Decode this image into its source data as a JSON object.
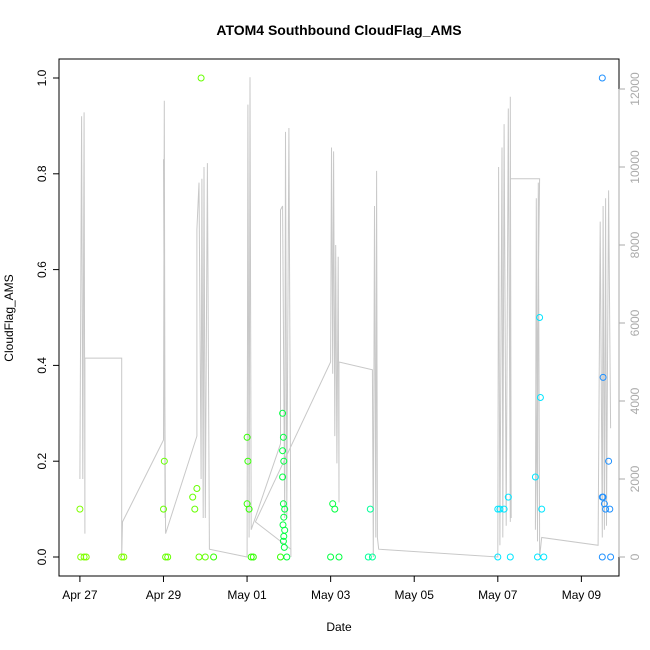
{
  "chart_data": {
    "type": "scatter",
    "title": "ATOM4 Southbound CloudFlag_AMS",
    "xlabel": "Date",
    "ylabel": "CloudFlag_AMS",
    "x_ticks": [
      "Apr 27",
      "Apr 29",
      "May 01",
      "May 03",
      "May 05",
      "May 07",
      "May 09"
    ],
    "x_tick_days": [
      0,
      2,
      4,
      6,
      8,
      10,
      12
    ],
    "xlim_days": [
      -0.5,
      12.9
    ],
    "ylim": [
      0,
      1.0
    ],
    "y_ticks": [
      "0.0",
      "0.2",
      "0.4",
      "0.6",
      "0.8",
      "1.0"
    ],
    "y_tick_values": [
      0,
      0.2,
      0.4,
      0.6,
      0.8,
      1.0
    ],
    "y2_label": "",
    "y2lim": [
      0,
      12000
    ],
    "y2_ticks": [
      "0",
      "2000",
      "4000",
      "6000",
      "8000",
      "10000",
      "12000"
    ],
    "y2_tick_values": [
      0,
      2000,
      4000,
      6000,
      8000,
      10000,
      12000
    ],
    "grid": false,
    "legend": "none",
    "point_colors": [
      "#7fff00",
      "#66ff00",
      "#33ff00",
      "#00ff40",
      "#00ff99",
      "#00ffff",
      "#00e5ff",
      "#1e90ff"
    ],
    "line_color": "#c8c8c8",
    "series": [
      {
        "values": [
          {
            "day": 0.0,
            "y": 0.1
          },
          {
            "day": 0.02,
            "y": 0.0
          },
          {
            "day": 0.1,
            "y": 0.0
          },
          {
            "day": 0.15,
            "y": 0.0
          },
          {
            "day": 1.0,
            "y": 0.0
          },
          {
            "day": 1.05,
            "y": 0.0
          },
          {
            "day": 2.0,
            "y": 0.1
          },
          {
            "day": 2.02,
            "y": 0.2
          },
          {
            "day": 2.05,
            "y": 0.0
          },
          {
            "day": 2.1,
            "y": 0.0
          },
          {
            "day": 2.7,
            "y": 0.125
          },
          {
            "day": 2.75,
            "y": 0.1
          },
          {
            "day": 2.8,
            "y": 0.143
          },
          {
            "day": 2.85,
            "y": 0.0
          },
          {
            "day": 2.9,
            "y": 1.0
          },
          {
            "day": 3.0,
            "y": 0.0
          },
          {
            "day": 3.2,
            "y": 0.0
          },
          {
            "day": 4.0,
            "y": 0.25
          },
          {
            "day": 4.02,
            "y": 0.2
          },
          {
            "day": 4.0,
            "y": 0.111
          },
          {
            "day": 4.05,
            "y": 0.1
          },
          {
            "day": 4.1,
            "y": 0.0
          },
          {
            "day": 4.15,
            "y": 0.0
          },
          {
            "day": 4.85,
            "y": 0.3
          },
          {
            "day": 4.87,
            "y": 0.25
          },
          {
            "day": 4.85,
            "y": 0.222
          },
          {
            "day": 4.88,
            "y": 0.2
          },
          {
            "day": 4.85,
            "y": 0.167
          },
          {
            "day": 4.87,
            "y": 0.111
          },
          {
            "day": 4.9,
            "y": 0.1
          },
          {
            "day": 4.88,
            "y": 0.083
          },
          {
            "day": 4.86,
            "y": 0.067
          },
          {
            "day": 4.9,
            "y": 0.056
          },
          {
            "day": 4.88,
            "y": 0.043
          },
          {
            "day": 4.87,
            "y": 0.033
          },
          {
            "day": 4.89,
            "y": 0.02
          },
          {
            "day": 4.8,
            "y": 0.0
          },
          {
            "day": 4.95,
            "y": 0.0
          },
          {
            "day": 6.05,
            "y": 0.111
          },
          {
            "day": 6.1,
            "y": 0.1
          },
          {
            "day": 6.0,
            "y": 0.0
          },
          {
            "day": 6.2,
            "y": 0.0
          },
          {
            "day": 6.95,
            "y": 0.1
          },
          {
            "day": 6.9,
            "y": 0.0
          },
          {
            "day": 7.0,
            "y": 0.0
          },
          {
            "day": 10.0,
            "y": 0.1
          },
          {
            "day": 10.05,
            "y": 0.1
          },
          {
            "day": 10.15,
            "y": 0.1
          },
          {
            "day": 10.25,
            "y": 0.125
          },
          {
            "day": 10.0,
            "y": 0.0
          },
          {
            "day": 10.3,
            "y": 0.0
          },
          {
            "day": 10.9,
            "y": 0.167
          },
          {
            "day": 11.0,
            "y": 0.5
          },
          {
            "day": 11.02,
            "y": 0.333
          },
          {
            "day": 11.05,
            "y": 0.1
          },
          {
            "day": 10.95,
            "y": 0.0
          },
          {
            "day": 11.1,
            "y": 0.0
          },
          {
            "day": 12.5,
            "y": 1.0
          },
          {
            "day": 12.52,
            "y": 0.375
          },
          {
            "day": 12.5,
            "y": 0.125
          },
          {
            "day": 12.52,
            "y": 0.125
          },
          {
            "day": 12.55,
            "y": 0.111
          },
          {
            "day": 12.58,
            "y": 0.1
          },
          {
            "day": 12.68,
            "y": 0.1
          },
          {
            "day": 12.65,
            "y": 0.2
          },
          {
            "day": 12.5,
            "y": 0.0
          },
          {
            "day": 12.7,
            "y": 0.0
          }
        ]
      },
      {
        "axis": "right",
        "values": [
          {
            "day": 0.0,
            "y2": 2000
          },
          {
            "day": 0.04,
            "y2": 11300
          },
          {
            "day": 0.07,
            "y2": 2000
          },
          {
            "day": 0.1,
            "y2": 11400
          },
          {
            "day": 0.12,
            "y2": 600
          },
          {
            "day": 0.12,
            "y2": 5100
          },
          {
            "day": 1.0,
            "y2": 5100
          },
          {
            "day": 1.0,
            "y2": 0
          },
          {
            "day": 1.02,
            "y2": 900
          },
          {
            "day": 2.0,
            "y2": 3000
          },
          {
            "day": 2.02,
            "y2": 11700
          },
          {
            "day": 2.04,
            "y2": 1000
          },
          {
            "day": 2.0,
            "y2": 10200
          },
          {
            "day": 2.05,
            "y2": 600
          },
          {
            "day": 2.8,
            "y2": 3100
          },
          {
            "day": 2.8,
            "y2": 8400
          },
          {
            "day": 2.85,
            "y2": 9600
          },
          {
            "day": 2.9,
            "y2": 2000
          },
          {
            "day": 2.92,
            "y2": 9700
          },
          {
            "day": 2.95,
            "y2": 1000
          },
          {
            "day": 2.97,
            "y2": 10000
          },
          {
            "day": 3.0,
            "y2": 1000
          },
          {
            "day": 3.05,
            "y2": 10100
          },
          {
            "day": 3.1,
            "y2": 200
          },
          {
            "day": 4.0,
            "y2": 0
          },
          {
            "day": 4.02,
            "y2": 11600
          },
          {
            "day": 4.05,
            "y2": 500
          },
          {
            "day": 4.07,
            "y2": 12300
          },
          {
            "day": 4.1,
            "y2": 700
          },
          {
            "day": 4.8,
            "y2": 2900
          },
          {
            "day": 4.8,
            "y2": 8900
          },
          {
            "day": 4.85,
            "y2": 9000
          },
          {
            "day": 4.9,
            "y2": 1000
          },
          {
            "day": 4.92,
            "y2": 10900
          },
          {
            "day": 4.95,
            "y2": 1000
          },
          {
            "day": 5.0,
            "y2": 11000
          },
          {
            "day": 5.05,
            "y2": 0
          },
          {
            "day": 5.05,
            "y2": 200
          },
          {
            "day": 4.2,
            "y2": 900
          },
          {
            "day": 6.0,
            "y2": 5000
          },
          {
            "day": 6.02,
            "y2": 10500
          },
          {
            "day": 6.05,
            "y2": 4700
          },
          {
            "day": 6.07,
            "y2": 10400
          },
          {
            "day": 6.1,
            "y2": 3100
          },
          {
            "day": 6.12,
            "y2": 8000
          },
          {
            "day": 6.15,
            "y2": 2400
          },
          {
            "day": 6.18,
            "y2": 7700
          },
          {
            "day": 6.2,
            "y2": 1400
          },
          {
            "day": 6.2,
            "y2": 5000
          },
          {
            "day": 7.0,
            "y2": 4800
          },
          {
            "day": 7.02,
            "y2": 0
          },
          {
            "day": 7.05,
            "y2": 9000
          },
          {
            "day": 7.08,
            "y2": 500
          },
          {
            "day": 7.1,
            "y2": 9900
          },
          {
            "day": 7.12,
            "y2": 500
          },
          {
            "day": 7.15,
            "y2": 200
          },
          {
            "day": 10.0,
            "y2": 0
          },
          {
            "day": 10.02,
            "y2": 10000
          },
          {
            "day": 10.05,
            "y2": 300
          },
          {
            "day": 10.1,
            "y2": 10500
          },
          {
            "day": 10.12,
            "y2": 500
          },
          {
            "day": 10.15,
            "y2": 11100
          },
          {
            "day": 10.2,
            "y2": 800
          },
          {
            "day": 10.25,
            "y2": 11500
          },
          {
            "day": 10.3,
            "y2": 900
          },
          {
            "day": 10.3,
            "y2": 11800
          },
          {
            "day": 10.32,
            "y2": 1000
          },
          {
            "day": 10.3,
            "y2": 9700
          },
          {
            "day": 11.0,
            "y2": 9700
          },
          {
            "day": 10.9,
            "y2": 700
          },
          {
            "day": 10.92,
            "y2": 9200
          },
          {
            "day": 10.95,
            "y2": 400
          },
          {
            "day": 10.97,
            "y2": 9600
          },
          {
            "day": 11.0,
            "y2": 500
          },
          {
            "day": 11.0,
            "y2": 0
          },
          {
            "day": 11.05,
            "y2": 500
          },
          {
            "day": 12.4,
            "y2": 300
          },
          {
            "day": 12.45,
            "y2": 8600
          },
          {
            "day": 12.5,
            "y2": 500
          },
          {
            "day": 12.52,
            "y2": 9000
          },
          {
            "day": 12.55,
            "y2": 700
          },
          {
            "day": 12.58,
            "y2": 9200
          },
          {
            "day": 12.6,
            "y2": 800
          },
          {
            "day": 12.65,
            "y2": 9400
          },
          {
            "day": 12.7,
            "y2": 3300
          }
        ]
      }
    ]
  }
}
